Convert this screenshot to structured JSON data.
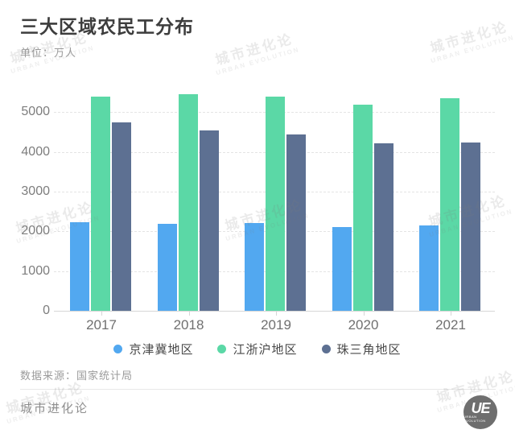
{
  "header": {
    "title": "三大区域农民工分布",
    "unit_label": "单位：万人"
  },
  "watermark": {
    "cn": "城市进化论",
    "en": "URBAN EVOLUTION"
  },
  "chart_data": {
    "type": "bar",
    "title": "三大区域农民工分布",
    "unit": "万人",
    "categories": [
      "2017",
      "2018",
      "2019",
      "2020",
      "2021"
    ],
    "series": [
      {
        "name": "京津冀地区",
        "color": "#52a8f0",
        "values": [
          2230,
          2190,
          2210,
          2100,
          2140
        ]
      },
      {
        "name": "江浙沪地区",
        "color": "#5bd8a6",
        "values": [
          5390,
          5460,
          5400,
          5180,
          5350
        ]
      },
      {
        "name": "珠三角地区",
        "color": "#5d7092",
        "values": [
          4750,
          4550,
          4430,
          4220,
          4230
        ]
      }
    ],
    "y_ticks": [
      0,
      1000,
      2000,
      3000,
      4000,
      5000
    ],
    "ylim": [
      0,
      5500
    ],
    "xlabel": "",
    "ylabel": "万人",
    "grid": "horizontal-dashed",
    "legend_position": "bottom"
  },
  "footer": {
    "source": "数据来源：国家统计局",
    "brand": "城市进化论",
    "logo_text": "UE",
    "logo_subtext": "URBAN EVOLUTION"
  }
}
